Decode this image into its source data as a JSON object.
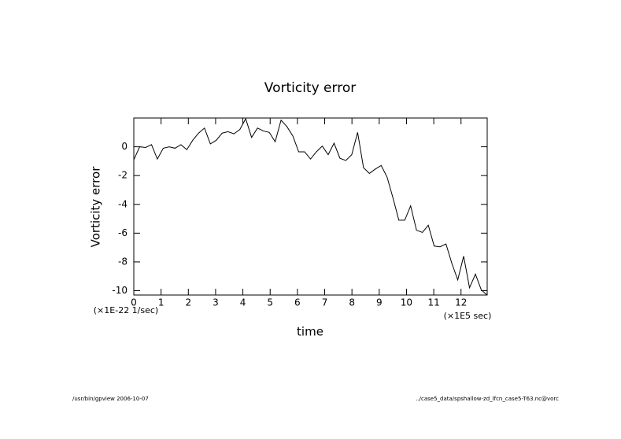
{
  "chart_data": {
    "type": "line",
    "title": "Vorticity error",
    "x_label": "time",
    "y_label": "Vorticity error",
    "x_unit_note": "(×1E5 sec)",
    "y_unit_note": "(×1E-22 1/sec)",
    "footer_left": "/usr/bin/gpview  2006-10-07",
    "footer_right": "../case5_data/spshallow-zd_lfcn_case5-T63.nc@vorc",
    "x": [
      0,
      0.216,
      0.432,
      0.648,
      0.864,
      1.08,
      1.296,
      1.512,
      1.728,
      1.944,
      2.16,
      2.376,
      2.592,
      2.808,
      3.024,
      3.24,
      3.456,
      3.672,
      3.888,
      4.104,
      4.32,
      4.536,
      4.752,
      4.968,
      5.184,
      5.4,
      5.616,
      5.832,
      6.048,
      6.264,
      6.48,
      6.696,
      6.912,
      7.128,
      7.344,
      7.56,
      7.776,
      7.992,
      8.208,
      8.424,
      8.64,
      8.856,
      9.072,
      9.288,
      9.504,
      9.72,
      9.936,
      10.152,
      10.368,
      10.584,
      10.8,
      11.016,
      11.232,
      11.448,
      11.664,
      11.88,
      12.096,
      12.312,
      12.528,
      12.744,
      12.96
    ],
    "series": [
      {
        "color": "#000000",
        "values": [
          -0.9,
          0,
          -0.05,
          0.15,
          -0.85,
          -0.1,
          0,
          -0.1,
          0.15,
          -0.2,
          0.45,
          0.95,
          1.3,
          0.2,
          0.45,
          0.95,
          1.05,
          0.9,
          1.2,
          1.95,
          0.65,
          1.3,
          1.1,
          1.0,
          0.35,
          1.85,
          1.4,
          0.75,
          -0.35,
          -0.35,
          -0.85,
          -0.35,
          0.05,
          -0.55,
          0.25,
          -0.8,
          -0.95,
          -0.55,
          1.0,
          -1.45,
          -1.85,
          -1.55,
          -1.3,
          -2.1,
          -3.55,
          -5.1,
          -5.1,
          -4.1,
          -5.8,
          -5.95,
          -5.45,
          -6.9,
          -6.95,
          -6.75,
          -8.1,
          -9.25,
          -7.6,
          -9.8,
          -8.85,
          -9.95,
          -10.3
        ]
      }
    ],
    "xlim": [
      0,
      12.96
    ],
    "ylim": [
      -10.3,
      2
    ],
    "xticks": [
      0,
      1,
      2,
      3,
      4,
      5,
      6,
      7,
      8,
      9,
      10,
      11,
      12
    ],
    "yticks": [
      -10,
      -8,
      -6,
      -4,
      -2,
      0
    ]
  }
}
